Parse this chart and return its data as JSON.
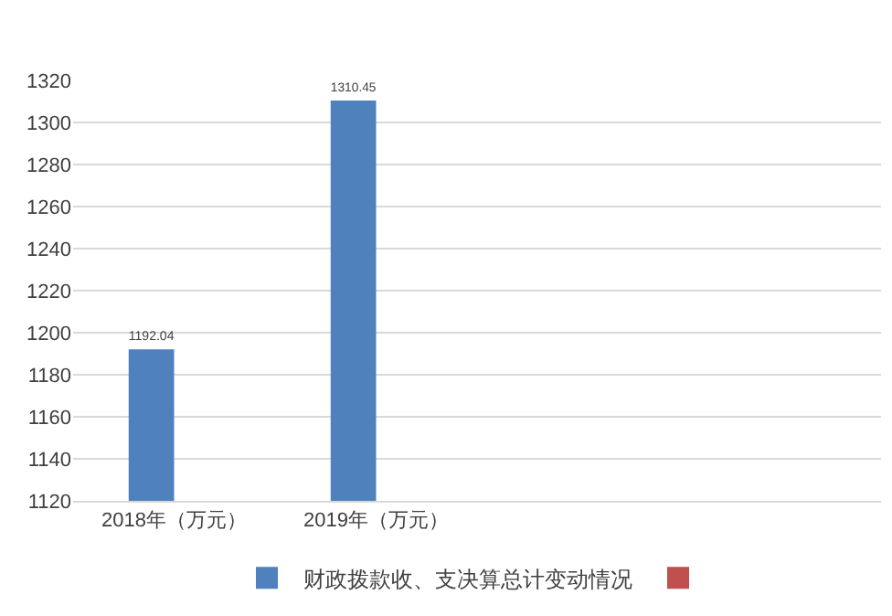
{
  "chart_data": {
    "type": "bar",
    "categories": [
      "2018年（万元）",
      "2019年（万元）",
      null,
      null
    ],
    "series": [
      {
        "name": "财政拨款收、支决算总计变动情况",
        "color": "#4f81bd",
        "values": [
          1192.04,
          1310.45,
          null,
          null
        ]
      },
      {
        "color": "#c0504d",
        "values": [
          null,
          null,
          null,
          null
        ]
      }
    ],
    "ylim": [
      1120,
      1320
    ],
    "yticks": [
      1120,
      1140,
      1160,
      1180,
      1200,
      1220,
      1240,
      1260,
      1280,
      1300,
      1320
    ],
    "grid": "y",
    "legend": "bottom",
    "data_labels": true
  }
}
